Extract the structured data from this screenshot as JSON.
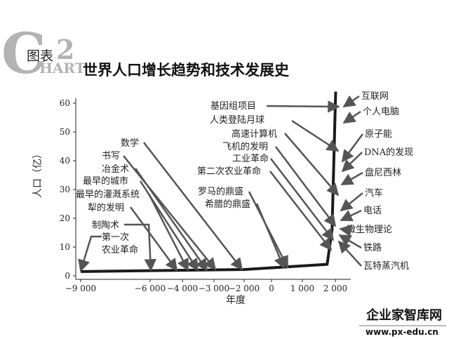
{
  "header": {
    "logo_letter": "C",
    "logo_suffix": "HART",
    "badge_label": "图表",
    "badge_number": "2",
    "title": "世界人口增长趋势和技术发展史"
  },
  "watermark": {
    "name": "企业家智库网",
    "url": "www.px-edu.cn"
  },
  "colors": {
    "curve": "#1a1a1a",
    "arrows": "#666666",
    "logo_grey": "#b3b3b3",
    "text": "#222222"
  },
  "chart_data": {
    "type": "line",
    "title": "世界人口增长趋势和技术发展史",
    "xlabel": "年度",
    "ylabel": "人口（亿）",
    "xlim": [
      -9500,
      2500
    ],
    "ylim": [
      0,
      62
    ],
    "x_ticks": [
      -9000,
      -6000,
      -4000,
      -3000,
      -2000,
      0,
      1000,
      2000
    ],
    "x_tick_labels": [
      "−9 000",
      "−6 000",
      "−4 000",
      "−3 000",
      "−2 000",
      "0",
      "1 000",
      "2 000"
    ],
    "y_ticks": [
      0,
      10,
      20,
      30,
      40,
      50,
      60
    ],
    "y_tick_labels": [
      "0",
      "10",
      "20",
      "30",
      "40",
      "50",
      "60"
    ],
    "grid": false,
    "series": [
      {
        "x": [
          -9000,
          -2000,
          1750,
          1900,
          2000,
          2010
        ],
        "y": [
          1.5,
          2.2,
          4.0,
          16.0,
          60.0,
          64.0
        ]
      }
    ],
    "annotations_left": [
      {
        "label": "数学",
        "year": -2100
      },
      {
        "label": "书写",
        "year": -3100
      },
      {
        "label": "冶金术",
        "year": -3300
      },
      {
        "label": "最早的城市",
        "year": -3600
      },
      {
        "label": "最早的灌溉系统",
        "year": -3900
      },
      {
        "label": "犁的发明",
        "year": -4100
      },
      {
        "label": "制陶术",
        "year": -6000
      },
      {
        "label": "第一次",
        "year": -9000
      },
      {
        "label": "农业革命",
        "year": null
      }
    ],
    "annotations_middle": [
      {
        "label": "罗马的鼎盛",
        "year": 400
      },
      {
        "label": "希腊的鼎盛",
        "year": -400
      }
    ],
    "annotations_top": [
      {
        "label": "基因组项目",
        "year": 2000
      },
      {
        "label": "人类登陆月球",
        "year": 1969
      },
      {
        "label": "高速计算机",
        "year": 1960
      },
      {
        "label": "飞机的发明",
        "year": 1903
      },
      {
        "label": "工业革命",
        "year": 1760
      },
      {
        "label": "第二次农业革命",
        "year": 1700
      }
    ],
    "annotations_right": [
      {
        "label": "互联网",
        "year": 1990
      },
      {
        "label": "个人电脑",
        "year": 1980
      },
      {
        "label": "原子能",
        "year": 1945
      },
      {
        "label": "DNA的发现",
        "year": 1953
      },
      {
        "label": "盘尼西林",
        "year": 1928
      },
      {
        "label": "汽车",
        "year": 1886
      },
      {
        "label": "电话",
        "year": 1876
      },
      {
        "label": "微生物理论",
        "year": 1860
      },
      {
        "label": "铁路",
        "year": 1825
      },
      {
        "label": "瓦特蒸汽机",
        "year": 1769
      }
    ]
  }
}
